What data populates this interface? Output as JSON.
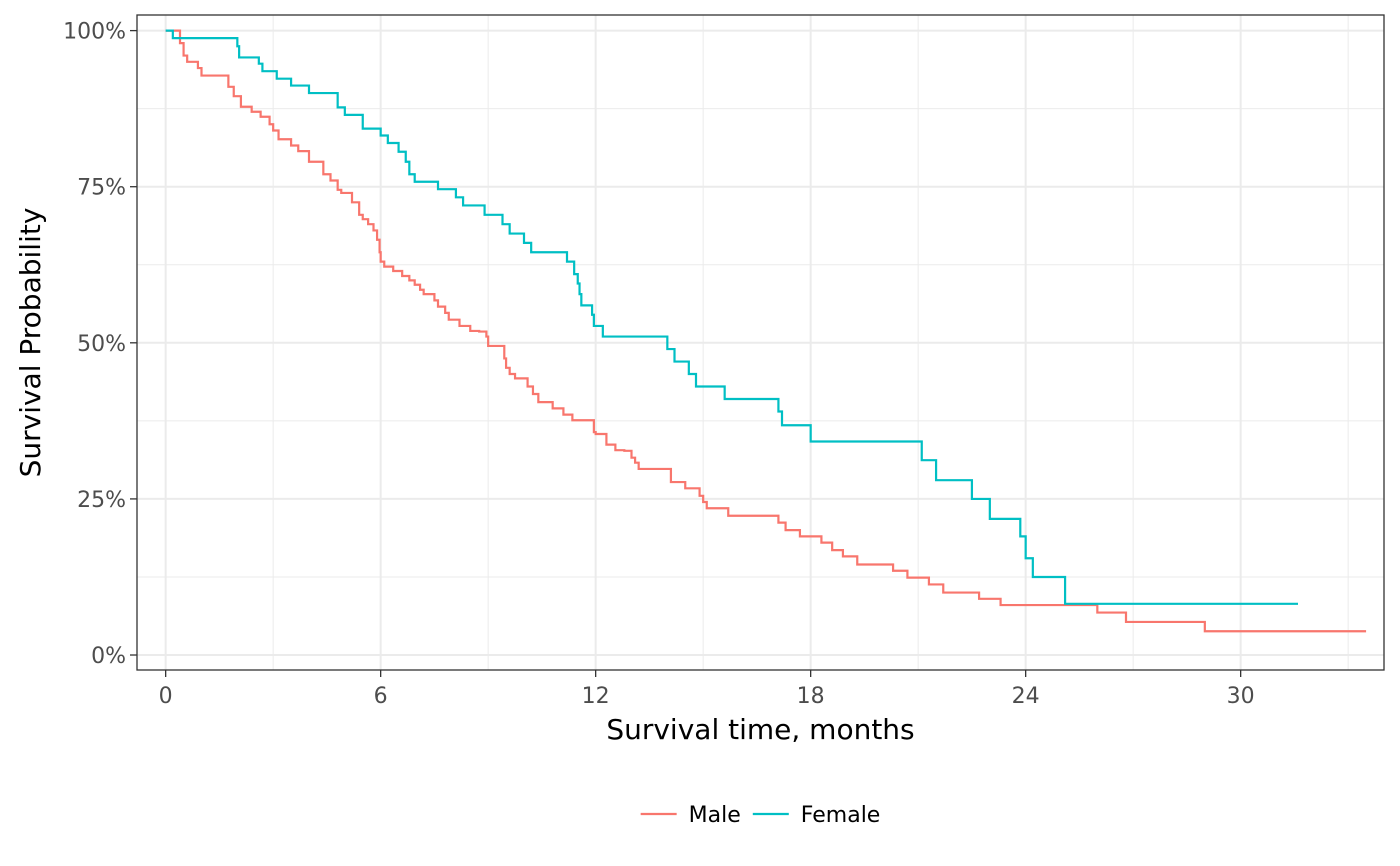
{
  "chart_data": {
    "type": "line",
    "step": true,
    "xlabel": "Survival time, months",
    "ylabel": "Survival Probability",
    "xlim": [
      -0.8,
      34.0
    ],
    "ylim": [
      -0.024,
      1.025
    ],
    "x_ticks": [
      0,
      6,
      12,
      18,
      24,
      30
    ],
    "x_tick_labels": [
      "0",
      "6",
      "12",
      "18",
      "24",
      "30"
    ],
    "y_ticks": [
      0,
      0.25,
      0.5,
      0.75,
      1.0
    ],
    "y_tick_labels": [
      "0%",
      "25%",
      "50%",
      "75%",
      "100%"
    ],
    "grid": true,
    "legend_position": "bottom",
    "series": [
      {
        "name": "Male",
        "color": "#F8766D",
        "points": [
          [
            0,
            1.0
          ],
          [
            0.4,
            0.98
          ],
          [
            0.5,
            0.96
          ],
          [
            0.6,
            0.95
          ],
          [
            0.9,
            0.94
          ],
          [
            1.0,
            0.928
          ],
          [
            1.75,
            0.91
          ],
          [
            1.9,
            0.895
          ],
          [
            2.1,
            0.878
          ],
          [
            2.4,
            0.87
          ],
          [
            2.65,
            0.862
          ],
          [
            2.9,
            0.85
          ],
          [
            3.0,
            0.84
          ],
          [
            3.15,
            0.826
          ],
          [
            3.5,
            0.816
          ],
          [
            3.7,
            0.807
          ],
          [
            4.0,
            0.79
          ],
          [
            4.4,
            0.77
          ],
          [
            4.6,
            0.76
          ],
          [
            4.8,
            0.745
          ],
          [
            4.9,
            0.74
          ],
          [
            5.2,
            0.725
          ],
          [
            5.4,
            0.705
          ],
          [
            5.5,
            0.698
          ],
          [
            5.65,
            0.69
          ],
          [
            5.8,
            0.68
          ],
          [
            5.9,
            0.665
          ],
          [
            5.97,
            0.645
          ],
          [
            6.0,
            0.63
          ],
          [
            6.1,
            0.622
          ],
          [
            6.35,
            0.615
          ],
          [
            6.6,
            0.607
          ],
          [
            6.8,
            0.6
          ],
          [
            6.95,
            0.593
          ],
          [
            7.1,
            0.585
          ],
          [
            7.2,
            0.578
          ],
          [
            7.5,
            0.568
          ],
          [
            7.6,
            0.558
          ],
          [
            7.8,
            0.548
          ],
          [
            7.9,
            0.537
          ],
          [
            8.2,
            0.527
          ],
          [
            8.5,
            0.519
          ],
          [
            8.7,
            0.519
          ],
          [
            8.75,
            0.518
          ],
          [
            8.95,
            0.51
          ],
          [
            9.0,
            0.495
          ],
          [
            9.45,
            0.475
          ],
          [
            9.5,
            0.46
          ],
          [
            9.6,
            0.45
          ],
          [
            9.75,
            0.443
          ],
          [
            10.1,
            0.43
          ],
          [
            10.25,
            0.418
          ],
          [
            10.4,
            0.405
          ],
          [
            10.8,
            0.395
          ],
          [
            11.1,
            0.385
          ],
          [
            11.35,
            0.376
          ],
          [
            11.95,
            0.357
          ],
          [
            12.0,
            0.354
          ],
          [
            12.3,
            0.337
          ],
          [
            12.55,
            0.328
          ],
          [
            12.8,
            0.327
          ],
          [
            13.0,
            0.316
          ],
          [
            13.1,
            0.308
          ],
          [
            13.2,
            0.298
          ],
          [
            14.1,
            0.277
          ],
          [
            14.5,
            0.267
          ],
          [
            14.9,
            0.255
          ],
          [
            15.0,
            0.245
          ],
          [
            15.1,
            0.235
          ],
          [
            15.7,
            0.223
          ],
          [
            17.1,
            0.212
          ],
          [
            17.3,
            0.2
          ],
          [
            17.7,
            0.19
          ],
          [
            18.3,
            0.18
          ],
          [
            18.6,
            0.168
          ],
          [
            18.9,
            0.158
          ],
          [
            19.3,
            0.145
          ],
          [
            20.3,
            0.135
          ],
          [
            20.7,
            0.124
          ],
          [
            21.3,
            0.113
          ],
          [
            21.7,
            0.1
          ],
          [
            22.7,
            0.09
          ],
          [
            23.3,
            0.08
          ],
          [
            26.0,
            0.068
          ],
          [
            26.8,
            0.053
          ],
          [
            29.0,
            0.038
          ],
          [
            33.5,
            0.038
          ]
        ]
      },
      {
        "name": "Female",
        "color": "#00BFC4",
        "points": [
          [
            0,
            1.0
          ],
          [
            0.2,
            0.988
          ],
          [
            2.0,
            0.975
          ],
          [
            2.05,
            0.957
          ],
          [
            2.6,
            0.947
          ],
          [
            2.7,
            0.935
          ],
          [
            3.1,
            0.923
          ],
          [
            3.5,
            0.912
          ],
          [
            4.0,
            0.9
          ],
          [
            4.8,
            0.877
          ],
          [
            5.0,
            0.865
          ],
          [
            5.5,
            0.843
          ],
          [
            6.0,
            0.832
          ],
          [
            6.2,
            0.82
          ],
          [
            6.5,
            0.806
          ],
          [
            6.7,
            0.79
          ],
          [
            6.8,
            0.77
          ],
          [
            6.95,
            0.758
          ],
          [
            7.6,
            0.746
          ],
          [
            8.1,
            0.733
          ],
          [
            8.3,
            0.72
          ],
          [
            8.9,
            0.705
          ],
          [
            9.4,
            0.69
          ],
          [
            9.6,
            0.675
          ],
          [
            10.0,
            0.66
          ],
          [
            10.2,
            0.645
          ],
          [
            11.2,
            0.63
          ],
          [
            11.4,
            0.61
          ],
          [
            11.5,
            0.595
          ],
          [
            11.55,
            0.578
          ],
          [
            11.6,
            0.56
          ],
          [
            11.9,
            0.545
          ],
          [
            11.95,
            0.527
          ],
          [
            12.2,
            0.51
          ],
          [
            14.0,
            0.49
          ],
          [
            14.2,
            0.47
          ],
          [
            14.6,
            0.45
          ],
          [
            14.8,
            0.43
          ],
          [
            15.6,
            0.41
          ],
          [
            17.1,
            0.39
          ],
          [
            17.2,
            0.368
          ],
          [
            18.0,
            0.342
          ],
          [
            21.1,
            0.312
          ],
          [
            21.5,
            0.28
          ],
          [
            22.5,
            0.25
          ],
          [
            23.0,
            0.218
          ],
          [
            23.85,
            0.19
          ],
          [
            24.0,
            0.155
          ],
          [
            24.2,
            0.125
          ],
          [
            25.1,
            0.082
          ],
          [
            31.6,
            0.082
          ]
        ]
      }
    ]
  }
}
